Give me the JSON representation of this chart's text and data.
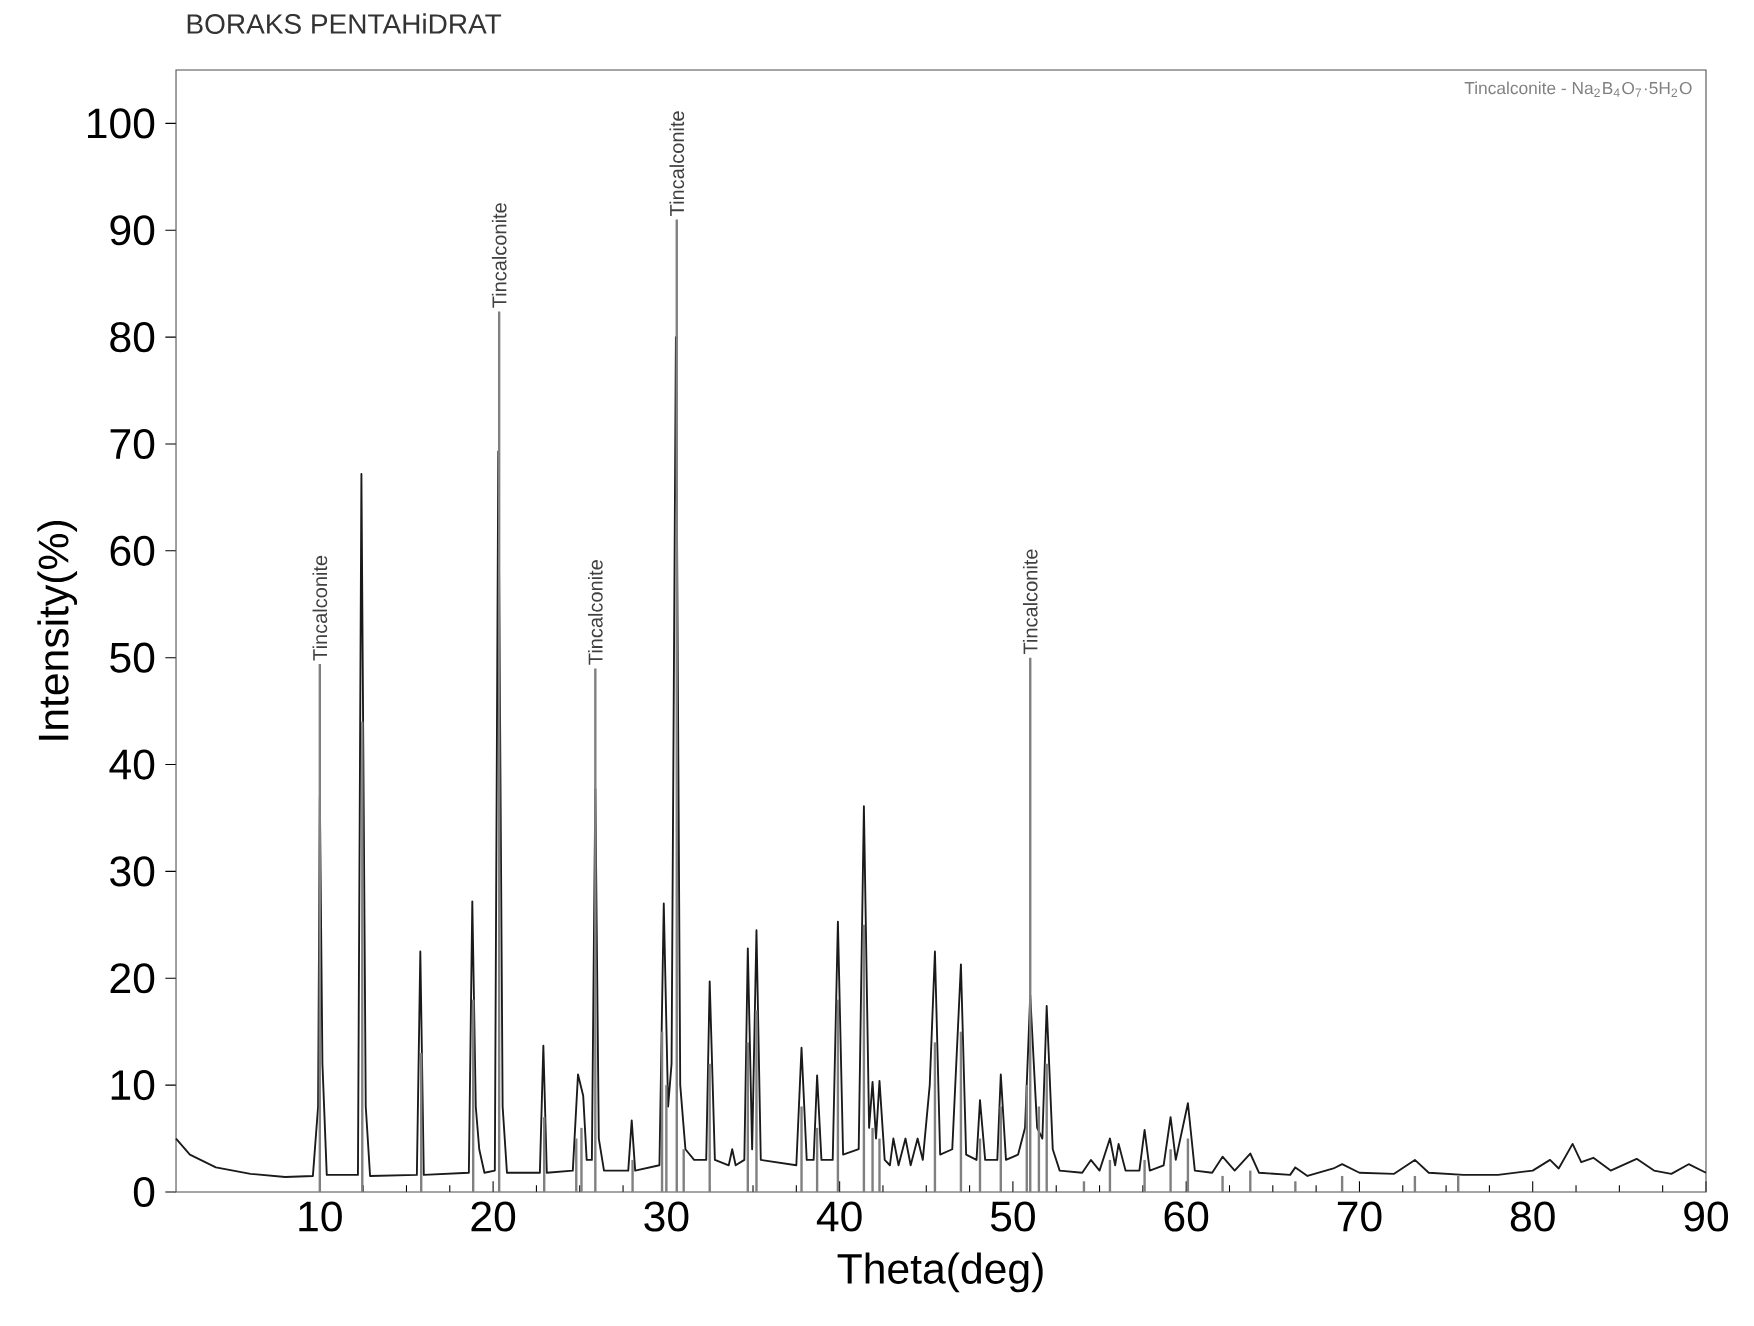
{
  "chart_data": {
    "type": "line",
    "title": "BORAKS PENTAHiDRAT",
    "xlabel": "Theta(deg)",
    "ylabel": "Intensity(%)",
    "xlim": [
      1.7,
      90
    ],
    "ylim": [
      0,
      105
    ],
    "xticks": [
      10,
      20,
      30,
      40,
      50,
      60,
      70,
      80,
      90
    ],
    "yticks": [
      0,
      10,
      20,
      30,
      40,
      50,
      60,
      70,
      80,
      90,
      100
    ],
    "series": [
      {
        "color": "#1a1a1a",
        "x": [
          1.7,
          2.5,
          4,
          6,
          8,
          9.6,
          9.9,
          10.0,
          10.15,
          10.4,
          12.2,
          12.4,
          12.65,
          12.9,
          15.6,
          15.8,
          16.0,
          18.6,
          18.8,
          19.0,
          19.2,
          19.5,
          20.1,
          20.3,
          20.55,
          20.8,
          22.7,
          22.9,
          23.1,
          24.6,
          24.9,
          25.2,
          25.4,
          25.7,
          25.9,
          26.1,
          26.4,
          27.8,
          28.0,
          28.2,
          29.6,
          29.85,
          30.1,
          30.3,
          30.55,
          30.8,
          31.1,
          31.6,
          32.3,
          32.5,
          32.8,
          33.6,
          33.8,
          34.0,
          34.5,
          34.7,
          34.95,
          35.2,
          35.45,
          37.5,
          37.8,
          38.1,
          38.5,
          38.7,
          38.95,
          39.6,
          39.9,
          40.2,
          41.1,
          41.4,
          41.7,
          41.9,
          42.1,
          42.3,
          42.6,
          42.9,
          43.1,
          43.4,
          43.8,
          44.1,
          44.5,
          44.8,
          45.2,
          45.5,
          45.8,
          46.5,
          47.0,
          47.3,
          47.9,
          48.1,
          48.4,
          49.1,
          49.3,
          49.6,
          50.3,
          50.7,
          51.0,
          51.4,
          51.7,
          51.95,
          52.3,
          52.7,
          54,
          54.5,
          55,
          55.6,
          55.9,
          56.1,
          56.5,
          57.3,
          57.6,
          57.9,
          58.7,
          59.1,
          59.4,
          60.1,
          60.5,
          61.5,
          62.1,
          62.8,
          63.7,
          64.2,
          66,
          66.3,
          67,
          68.5,
          69,
          70,
          72,
          73.2,
          74,
          76,
          78,
          80,
          81,
          81.5,
          82.3,
          82.8,
          83.5,
          84.5,
          86,
          87,
          88,
          89,
          90
        ],
        "values": [
          5,
          3.5,
          2.3,
          1.7,
          1.4,
          1.5,
          8,
          37,
          12,
          1.6,
          1.6,
          67.2,
          8,
          1.5,
          1.6,
          22.5,
          1.6,
          1.8,
          27.2,
          8,
          4,
          1.8,
          2,
          69.3,
          8,
          1.8,
          1.8,
          13.7,
          1.8,
          2,
          11,
          9,
          3,
          3,
          37.7,
          5,
          2,
          2,
          6.7,
          2,
          2.5,
          27,
          8,
          12,
          80,
          10,
          4,
          3,
          3,
          19.7,
          3,
          2.5,
          4,
          2.5,
          3,
          22.8,
          4,
          24.5,
          3,
          2.5,
          13.5,
          3,
          3,
          10.9,
          3,
          3,
          25.3,
          3.5,
          4,
          36.1,
          6,
          10.3,
          5,
          10.4,
          3,
          2.5,
          5,
          2.5,
          5,
          2.5,
          5,
          3,
          10,
          22.5,
          3.5,
          4,
          21.3,
          3.5,
          3,
          8.6,
          3,
          3,
          11,
          3,
          3.5,
          6,
          18.4,
          6,
          5,
          17.4,
          4,
          2,
          1.8,
          3,
          2,
          5,
          2.5,
          4.5,
          2,
          2,
          5.8,
          2,
          2.5,
          7,
          3,
          8.3,
          2,
          1.8,
          3.3,
          2,
          3.6,
          1.8,
          1.6,
          2.3,
          1.5,
          2.2,
          2.6,
          1.8,
          1.7,
          3,
          1.8,
          1.6,
          1.6,
          2,
          3,
          2.2,
          4.5,
          2.8,
          3.2,
          2,
          3.1,
          2,
          1.7,
          2.6,
          1.8
        ]
      },
      {
        "type": "bar",
        "name": "Tincalconite - Na$_{2}$B$_{4}$O$_{7}$·5H$_{2}$O",
        "color": "#808080",
        "x": [
          10.0,
          12.45,
          15.85,
          18.85,
          20.35,
          22.95,
          24.8,
          25.1,
          25.9,
          28.05,
          29.75,
          30.0,
          30.6,
          31.0,
          32.5,
          34.7,
          35.2,
          37.8,
          38.7,
          39.9,
          41.4,
          41.9,
          42.3,
          45.5,
          47.0,
          48.1,
          49.3,
          50.8,
          51.0,
          51.5,
          51.95,
          54.1,
          55.6,
          57.6,
          59.1,
          60.1,
          62.1,
          63.7,
          66.3,
          69.0,
          73.2,
          75.7
        ],
        "values": [
          49.4,
          44,
          13,
          18,
          82.4,
          7,
          5,
          6,
          49,
          3,
          15,
          10,
          91,
          4,
          12,
          14,
          17,
          8,
          6,
          18,
          25,
          6,
          5,
          14,
          15,
          5,
          8,
          10,
          50,
          8,
          12,
          1,
          3,
          3,
          4,
          5,
          1.5,
          2,
          1,
          1.5,
          1.5,
          1.5
        ]
      }
    ],
    "annotations": [
      {
        "text": "Tincalconite",
        "x": 10.0,
        "y": 49.4
      },
      {
        "text": "Tincalconite",
        "x": 20.35,
        "y": 82.4
      },
      {
        "text": "Tincalconite",
        "x": 25.9,
        "y": 49
      },
      {
        "text": "Tincalconite",
        "x": 30.6,
        "y": 91
      },
      {
        "text": "Tincalconite",
        "x": 51.0,
        "y": 50
      }
    ]
  }
}
